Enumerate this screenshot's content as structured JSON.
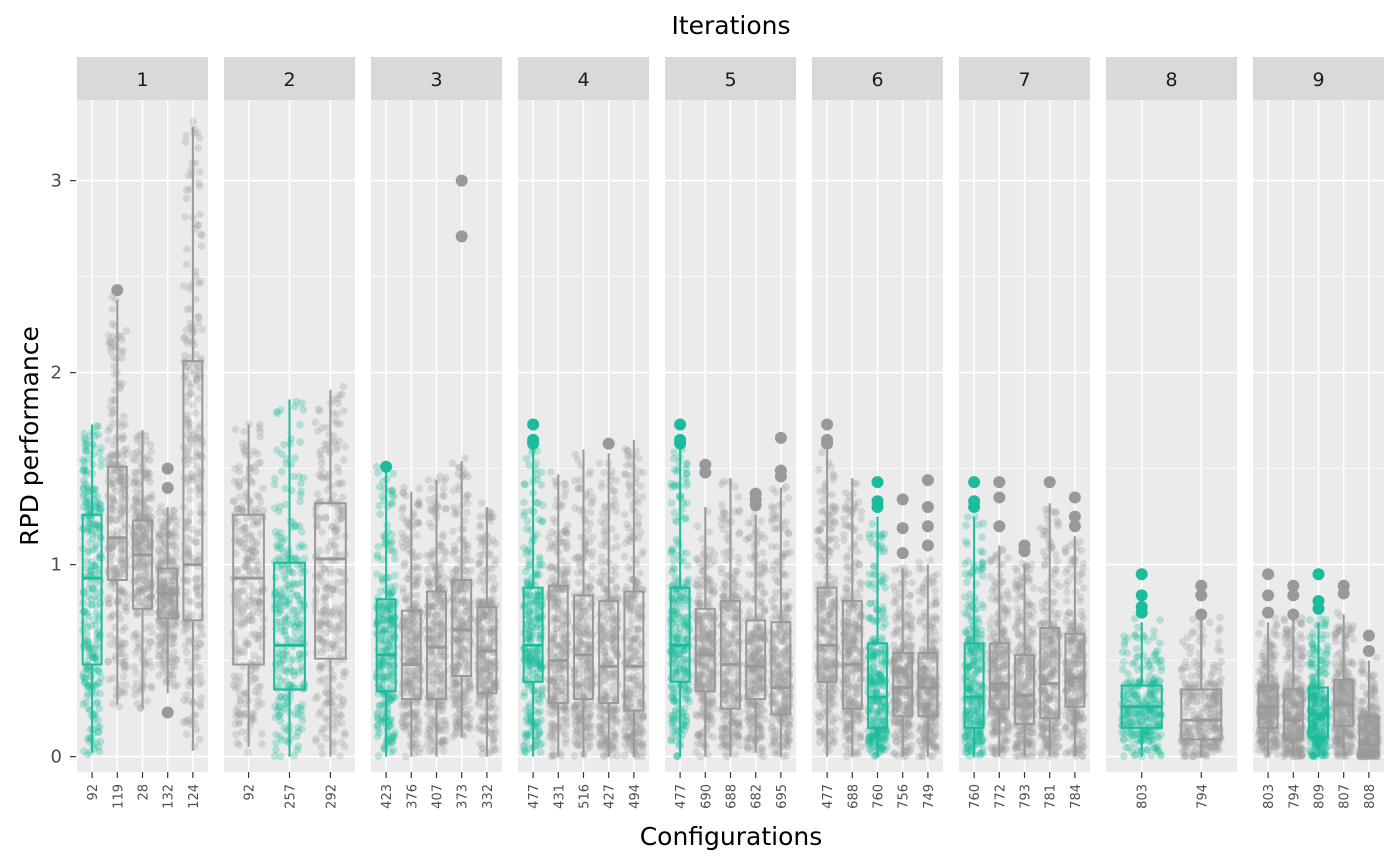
{
  "chart_data": {
    "type": "boxplot",
    "title": "Iterations",
    "xlabel": "Configurations",
    "ylabel": "RPD performance",
    "ylim": [
      -0.08,
      3.42
    ],
    "yticks": [
      0,
      1,
      2,
      3
    ],
    "grid": true,
    "colors": {
      "elite": "#1abc9c",
      "other": "#999999",
      "panel_bg": "#ebebeb",
      "strip_bg": "#d9d9d9",
      "grid": "#ffffff"
    },
    "facets": [
      {
        "label": "1",
        "boxes": [
          {
            "config": "92",
            "elite": true,
            "q1": 0.48,
            "median": 0.93,
            "q3": 1.26,
            "whisker_low": 0.02,
            "whisker_high": 1.73,
            "outliers": [],
            "max_point": 1.73
          },
          {
            "config": "119",
            "elite": false,
            "q1": 0.92,
            "median": 1.14,
            "q3": 1.51,
            "whisker_low": 0.27,
            "whisker_high": 2.38,
            "outliers": [
              2.43
            ],
            "max_point": 2.43
          },
          {
            "config": "28",
            "elite": false,
            "q1": 0.77,
            "median": 1.05,
            "q3": 1.23,
            "whisker_low": 0.25,
            "whisker_high": 1.7,
            "outliers": [],
            "max_point": 1.7
          },
          {
            "config": "132",
            "elite": false,
            "q1": 0.72,
            "median": 0.85,
            "q3": 0.98,
            "whisker_low": 0.33,
            "whisker_high": 1.3,
            "outliers": [
              1.5,
              1.4,
              0.23
            ],
            "max_point": 1.5
          },
          {
            "config": "124",
            "elite": false,
            "q1": 0.71,
            "median": 1.0,
            "q3": 2.06,
            "whisker_low": 0.03,
            "whisker_high": 3.28,
            "outliers": [],
            "max_point": 3.28
          }
        ]
      },
      {
        "label": "2",
        "boxes": [
          {
            "config": "92",
            "elite": false,
            "q1": 0.48,
            "median": 0.93,
            "q3": 1.26,
            "whisker_low": 0.05,
            "whisker_high": 1.73,
            "outliers": [],
            "max_point": 1.73
          },
          {
            "config": "257",
            "elite": true,
            "q1": 0.35,
            "median": 0.58,
            "q3": 1.01,
            "whisker_low": 0.0,
            "whisker_high": 1.86,
            "outliers": [],
            "max_point": 1.86
          },
          {
            "config": "292",
            "elite": false,
            "q1": 0.51,
            "median": 1.03,
            "q3": 1.32,
            "whisker_low": 0.0,
            "whisker_high": 1.91,
            "outliers": [],
            "max_point": 1.91
          }
        ]
      },
      {
        "label": "3",
        "boxes": [
          {
            "config": "423",
            "elite": true,
            "q1": 0.34,
            "median": 0.53,
            "q3": 0.82,
            "whisker_low": 0.0,
            "whisker_high": 1.51,
            "outliers": [
              1.51
            ],
            "max_point": 1.51
          },
          {
            "config": "376",
            "elite": false,
            "q1": 0.3,
            "median": 0.48,
            "q3": 0.76,
            "whisker_low": 0.0,
            "whisker_high": 1.38,
            "outliers": [],
            "max_point": 1.38
          },
          {
            "config": "407",
            "elite": false,
            "q1": 0.3,
            "median": 0.57,
            "q3": 0.86,
            "whisker_low": 0.0,
            "whisker_high": 1.44,
            "outliers": [],
            "max_point": 1.44
          },
          {
            "config": "373",
            "elite": false,
            "q1": 0.42,
            "median": 0.66,
            "q3": 0.92,
            "whisker_low": 0.1,
            "whisker_high": 1.54,
            "outliers": [
              3.0,
              2.71
            ],
            "max_point": 3.0
          },
          {
            "config": "332",
            "elite": false,
            "q1": 0.33,
            "median": 0.55,
            "q3": 0.78,
            "whisker_low": 0.0,
            "whisker_high": 1.3,
            "outliers": [],
            "max_point": 1.3
          }
        ]
      },
      {
        "label": "4",
        "boxes": [
          {
            "config": "477",
            "elite": true,
            "q1": 0.39,
            "median": 0.58,
            "q3": 0.88,
            "whisker_low": 0.0,
            "whisker_high": 1.6,
            "outliers": [
              1.73,
              1.65,
              1.63
            ],
            "max_point": 1.73
          },
          {
            "config": "431",
            "elite": false,
            "q1": 0.28,
            "median": 0.5,
            "q3": 0.89,
            "whisker_low": 0.0,
            "whisker_high": 1.47,
            "outliers": [],
            "max_point": 1.47
          },
          {
            "config": "516",
            "elite": false,
            "q1": 0.3,
            "median": 0.53,
            "q3": 0.84,
            "whisker_low": 0.0,
            "whisker_high": 1.6,
            "outliers": [],
            "max_point": 1.6
          },
          {
            "config": "427",
            "elite": false,
            "q1": 0.28,
            "median": 0.47,
            "q3": 0.81,
            "whisker_low": 0.0,
            "whisker_high": 1.58,
            "outliers": [
              1.63
            ],
            "max_point": 1.63
          },
          {
            "config": "494",
            "elite": false,
            "q1": 0.24,
            "median": 0.47,
            "q3": 0.86,
            "whisker_low": 0.0,
            "whisker_high": 1.65,
            "outliers": [],
            "max_point": 1.65
          }
        ]
      },
      {
        "label": "5",
        "boxes": [
          {
            "config": "477",
            "elite": true,
            "q1": 0.39,
            "median": 0.58,
            "q3": 0.88,
            "whisker_low": 0.0,
            "whisker_high": 1.6,
            "outliers": [
              1.73,
              1.65,
              1.63
            ],
            "max_point": 1.73
          },
          {
            "config": "690",
            "elite": false,
            "q1": 0.34,
            "median": 0.53,
            "q3": 0.77,
            "whisker_low": 0.0,
            "whisker_high": 1.3,
            "outliers": [
              1.52,
              1.48
            ],
            "max_point": 1.52
          },
          {
            "config": "688",
            "elite": false,
            "q1": 0.25,
            "median": 0.48,
            "q3": 0.81,
            "whisker_low": 0.0,
            "whisker_high": 1.45,
            "outliers": [],
            "max_point": 1.45
          },
          {
            "config": "682",
            "elite": false,
            "q1": 0.3,
            "median": 0.47,
            "q3": 0.71,
            "whisker_low": 0.02,
            "whisker_high": 1.26,
            "outliers": [
              1.37,
              1.34,
              1.31
            ],
            "max_point": 1.37
          },
          {
            "config": "695",
            "elite": false,
            "q1": 0.22,
            "median": 0.36,
            "q3": 0.7,
            "whisker_low": 0.0,
            "whisker_high": 1.4,
            "outliers": [
              1.66,
              1.49,
              1.46
            ],
            "max_point": 1.66
          }
        ]
      },
      {
        "label": "6",
        "boxes": [
          {
            "config": "477",
            "elite": false,
            "q1": 0.39,
            "median": 0.58,
            "q3": 0.88,
            "whisker_low": 0.0,
            "whisker_high": 1.6,
            "outliers": [
              1.73,
              1.65,
              1.63
            ],
            "max_point": 1.73
          },
          {
            "config": "688",
            "elite": false,
            "q1": 0.25,
            "median": 0.48,
            "q3": 0.81,
            "whisker_low": 0.0,
            "whisker_high": 1.45,
            "outliers": [],
            "max_point": 1.45
          },
          {
            "config": "760",
            "elite": true,
            "q1": 0.15,
            "median": 0.31,
            "q3": 0.59,
            "whisker_low": 0.0,
            "whisker_high": 1.25,
            "outliers": [
              1.43,
              1.33,
              1.3
            ],
            "max_point": 1.43
          },
          {
            "config": "756",
            "elite": false,
            "q1": 0.21,
            "median": 0.36,
            "q3": 0.54,
            "whisker_low": 0.0,
            "whisker_high": 0.98,
            "outliers": [
              1.34,
              1.19,
              1.06
            ],
            "max_point": 1.34
          },
          {
            "config": "749",
            "elite": false,
            "q1": 0.21,
            "median": 0.36,
            "q3": 0.54,
            "whisker_low": 0.0,
            "whisker_high": 1.0,
            "outliers": [
              1.44,
              1.3,
              1.2,
              1.1
            ],
            "max_point": 1.44
          }
        ]
      },
      {
        "label": "7",
        "boxes": [
          {
            "config": "760",
            "elite": true,
            "q1": 0.15,
            "median": 0.31,
            "q3": 0.59,
            "whisker_low": 0.0,
            "whisker_high": 1.25,
            "outliers": [
              1.43,
              1.33,
              1.3
            ],
            "max_point": 1.43
          },
          {
            "config": "772",
            "elite": false,
            "q1": 0.25,
            "median": 0.38,
            "q3": 0.59,
            "whisker_low": 0.0,
            "whisker_high": 1.1,
            "outliers": [
              1.43,
              1.35,
              1.2
            ],
            "max_point": 1.43
          },
          {
            "config": "793",
            "elite": false,
            "q1": 0.17,
            "median": 0.32,
            "q3": 0.53,
            "whisker_low": 0.0,
            "whisker_high": 1.0,
            "outliers": [
              1.1,
              1.07
            ],
            "max_point": 1.1
          },
          {
            "config": "781",
            "elite": false,
            "q1": 0.2,
            "median": 0.38,
            "q3": 0.67,
            "whisker_low": 0.0,
            "whisker_high": 1.32,
            "outliers": [
              1.43
            ],
            "max_point": 1.43
          },
          {
            "config": "784",
            "elite": false,
            "q1": 0.26,
            "median": 0.41,
            "q3": 0.64,
            "whisker_low": 0.0,
            "whisker_high": 1.15,
            "outliers": [
              1.35,
              1.25,
              1.2
            ],
            "max_point": 1.35
          }
        ]
      },
      {
        "label": "8",
        "boxes": [
          {
            "config": "803",
            "elite": true,
            "q1": 0.15,
            "median": 0.26,
            "q3": 0.37,
            "whisker_low": 0.0,
            "whisker_high": 0.7,
            "outliers": [
              0.95,
              0.84,
              0.78,
              0.75
            ],
            "max_point": 0.95
          },
          {
            "config": "794",
            "elite": false,
            "q1": 0.09,
            "median": 0.19,
            "q3": 0.35,
            "whisker_low": 0.0,
            "whisker_high": 0.72,
            "outliers": [
              0.89,
              0.84,
              0.74
            ],
            "max_point": 0.89
          }
        ]
      },
      {
        "label": "9",
        "boxes": [
          {
            "config": "803",
            "elite": false,
            "q1": 0.15,
            "median": 0.26,
            "q3": 0.37,
            "whisker_low": 0.0,
            "whisker_high": 0.7,
            "outliers": [
              0.95,
              0.84,
              0.75
            ],
            "max_point": 0.95
          },
          {
            "config": "794",
            "elite": false,
            "q1": 0.09,
            "median": 0.19,
            "q3": 0.35,
            "whisker_low": 0.0,
            "whisker_high": 0.72,
            "outliers": [
              0.89,
              0.84,
              0.74
            ],
            "max_point": 0.89
          },
          {
            "config": "809",
            "elite": true,
            "q1": 0.1,
            "median": 0.22,
            "q3": 0.36,
            "whisker_low": 0.0,
            "whisker_high": 0.7,
            "outliers": [
              0.95,
              0.81,
              0.77
            ],
            "max_point": 0.95
          },
          {
            "config": "807",
            "elite": false,
            "q1": 0.16,
            "median": 0.27,
            "q3": 0.4,
            "whisker_low": 0.0,
            "whisker_high": 0.74,
            "outliers": [
              0.89,
              0.85
            ],
            "max_point": 0.89
          },
          {
            "config": "808",
            "elite": false,
            "q1": 0.02,
            "median": 0.06,
            "q3": 0.21,
            "whisker_low": 0.0,
            "whisker_high": 0.5,
            "outliers": [
              0.63,
              0.55
            ],
            "max_point": 0.63
          }
        ]
      }
    ]
  }
}
